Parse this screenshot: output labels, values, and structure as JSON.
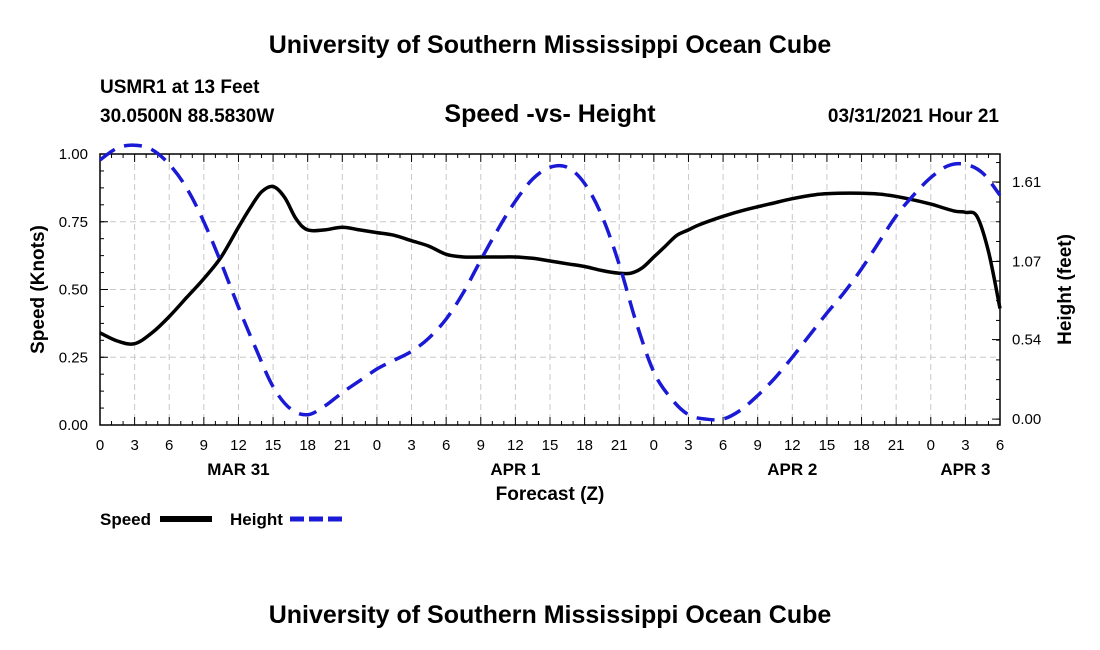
{
  "page_title_top": "University of Southern Mississippi Ocean Cube",
  "page_title_bottom": "University of Southern Mississippi Ocean Cube",
  "station": {
    "name": "USMR1 at 13 Feet",
    "coords": "30.0500N  88.5830W",
    "datetime": "03/31/2021 Hour 21"
  },
  "colors": {
    "speed": "#000000",
    "height": "#1a1ad6",
    "grid": "#c8c8c8"
  },
  "chart_data": {
    "type": "line",
    "title": "Speed -vs- Height",
    "xlabel": "Forecast (Z)",
    "ylabel": "Speed (Knots)",
    "y2label": "Height (feet)",
    "xlim": [
      0,
      78
    ],
    "ylim": [
      0,
      1
    ],
    "y2lim": [
      -0.04,
      1.8
    ],
    "x_tick_labels": [
      "0",
      "3",
      "6",
      "9",
      "12",
      "15",
      "18",
      "21",
      "0",
      "3",
      "6",
      "9",
      "12",
      "15",
      "18",
      "21",
      "0",
      "3",
      "6",
      "9",
      "12",
      "15",
      "18",
      "21",
      "0",
      "3",
      "6"
    ],
    "date_labels": [
      {
        "x": 12,
        "label": "MAR 31"
      },
      {
        "x": 36,
        "label": "APR 1"
      },
      {
        "x": 60,
        "label": "APR 2"
      },
      {
        "x": 75,
        "label": "APR 3"
      }
    ],
    "y_ticks": [
      {
        "value": 0,
        "label": "0.00"
      },
      {
        "value": 0.25,
        "label": "0.25"
      },
      {
        "value": 0.5,
        "label": "0.50"
      },
      {
        "value": 0.75,
        "label": "0.75"
      },
      {
        "value": 1,
        "label": "1.00"
      }
    ],
    "y2_ticks": [
      {
        "value": 0.0,
        "label": "0.00"
      },
      {
        "value": 0.54,
        "label": "0.54"
      },
      {
        "value": 1.07,
        "label": "1.07"
      },
      {
        "value": 1.61,
        "label": "1.61"
      }
    ],
    "series": [
      {
        "name": "Speed",
        "axis": "left",
        "style": "solid",
        "x": [
          0,
          1.5,
          3,
          4.5,
          6,
          7.5,
          9,
          10.5,
          12,
          13,
          14,
          15,
          16,
          17,
          18,
          19.5,
          21,
          22.5,
          24,
          25.5,
          27,
          28.5,
          30,
          31.5,
          33,
          34.5,
          36,
          37.5,
          39,
          40.5,
          42,
          43.5,
          45,
          46,
          47,
          48,
          49,
          50,
          51,
          52,
          54,
          56,
          58,
          60,
          62,
          64,
          66,
          68,
          70,
          72,
          74,
          75,
          76,
          77,
          78
        ],
        "values": [
          0.34,
          0.31,
          0.3,
          0.34,
          0.4,
          0.47,
          0.54,
          0.62,
          0.73,
          0.8,
          0.86,
          0.88,
          0.84,
          0.76,
          0.72,
          0.72,
          0.73,
          0.72,
          0.71,
          0.7,
          0.68,
          0.66,
          0.63,
          0.62,
          0.62,
          0.62,
          0.62,
          0.615,
          0.605,
          0.595,
          0.585,
          0.57,
          0.56,
          0.56,
          0.58,
          0.62,
          0.66,
          0.7,
          0.72,
          0.74,
          0.77,
          0.795,
          0.815,
          0.835,
          0.85,
          0.855,
          0.855,
          0.85,
          0.835,
          0.815,
          0.79,
          0.785,
          0.77,
          0.64,
          0.43
        ]
      },
      {
        "name": "Height",
        "axis": "right",
        "style": "dashed",
        "x": [
          0,
          1.5,
          3,
          4.5,
          6,
          7.5,
          9,
          10.5,
          12,
          13.5,
          15,
          16.5,
          18,
          19.5,
          21,
          22.5,
          24,
          25.5,
          27,
          28.5,
          30,
          31.5,
          33,
          34.5,
          36,
          37.5,
          39,
          40.5,
          42,
          43.5,
          45,
          46.5,
          48,
          49.5,
          51,
          52.5,
          54,
          55.5,
          57,
          58.5,
          60,
          61.5,
          63,
          64.5,
          66,
          67.5,
          69,
          70.5,
          72,
          73.5,
          75,
          76.5,
          78
        ],
        "values": [
          1.76,
          1.84,
          1.86,
          1.83,
          1.73,
          1.57,
          1.34,
          1.06,
          0.76,
          0.48,
          0.22,
          0.07,
          0.03,
          0.09,
          0.18,
          0.26,
          0.34,
          0.4,
          0.46,
          0.55,
          0.68,
          0.86,
          1.08,
          1.29,
          1.48,
          1.63,
          1.71,
          1.71,
          1.6,
          1.38,
          1.05,
          0.65,
          0.32,
          0.14,
          0.03,
          0.0,
          0.0,
          0.06,
          0.16,
          0.28,
          0.42,
          0.57,
          0.72,
          0.86,
          1.02,
          1.2,
          1.38,
          1.52,
          1.64,
          1.72,
          1.73,
          1.67,
          1.52
        ]
      }
    ],
    "legend": [
      {
        "label": "Speed",
        "style": "solid"
      },
      {
        "label": "Height",
        "style": "dashed"
      }
    ],
    "grid": true,
    "legend_position": "bottom-left"
  }
}
